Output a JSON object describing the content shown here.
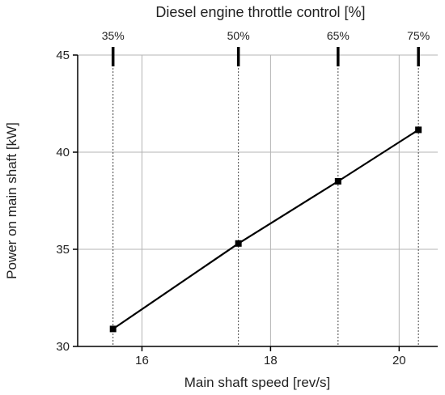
{
  "chart_data": {
    "type": "line",
    "top_axis_title": "Diesel engine throttle control  [%]",
    "xlabel": "Main shaft speed [rev/s]",
    "ylabel": "Power on main shaft [kW]",
    "xlim": [
      15,
      20.6
    ],
    "ylim": [
      30,
      45
    ],
    "x_ticks": [
      16,
      18,
      20
    ],
    "y_ticks": [
      30,
      35,
      40,
      45
    ],
    "grid": true,
    "series": [
      {
        "x": [
          15.55,
          17.5,
          19.05,
          20.3
        ],
        "y": [
          30.9,
          35.3,
          38.5,
          41.15
        ]
      }
    ],
    "top_markers": [
      {
        "label": "35%",
        "x": 15.55
      },
      {
        "label": "50%",
        "x": 17.5
      },
      {
        "label": "65%",
        "x": 19.05
      },
      {
        "label": "75%",
        "x": 20.3
      }
    ]
  }
}
